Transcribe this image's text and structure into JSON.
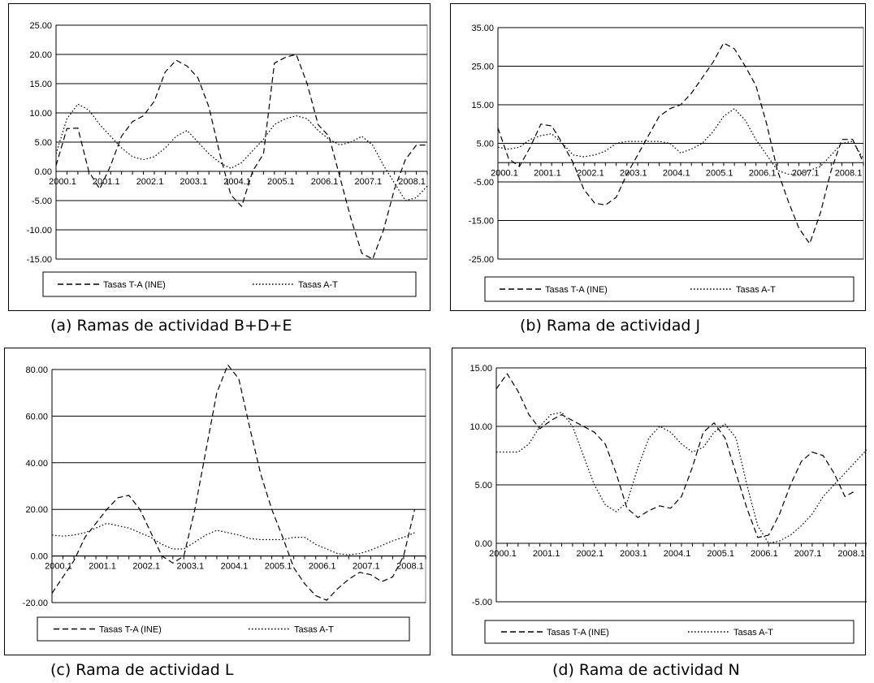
{
  "legend": {
    "dash_label": "Tasas T-A (INE)",
    "dot_label": "Tasas A-T"
  },
  "colors": {
    "line": "#000000",
    "grid": "#000000",
    "background": "#ffffff"
  },
  "chart_data": [
    {
      "type": "line",
      "caption": "(a) Ramas de actividad B+D+E",
      "y_ticks": [
        "25.00",
        "20.00",
        "15.00",
        "10.00",
        "5.00",
        "0.00",
        "-5.00",
        "-10.00",
        "-15.00"
      ],
      "ylim": [
        -15,
        25
      ],
      "x_tick_labels": [
        "2000.1",
        "2001.1",
        "2002.1",
        "2003.1",
        "2004.1",
        "2005.1",
        "2006.1",
        "2007.1",
        "2008.1"
      ],
      "x_axis_at": 0,
      "series": [
        {
          "name": "Tasas T-A (INE)",
          "style": "dash",
          "values": [
            1.0,
            7.3,
            7.4,
            0,
            -3,
            1,
            6,
            8.5,
            9.5,
            12,
            17,
            19,
            18,
            16,
            11,
            3,
            -4,
            -6,
            0,
            3,
            18.5,
            19.5,
            20,
            15,
            8,
            6,
            -1,
            -8,
            -14,
            -15,
            -10,
            -3,
            2,
            4.5,
            4.5
          ]
        },
        {
          "name": "Tasas A-T",
          "style": "dot",
          "values": [
            3,
            9,
            11.5,
            10.5,
            8,
            6,
            4,
            2.5,
            2,
            2.5,
            4,
            6,
            7,
            5,
            3,
            1.5,
            0.5,
            1.5,
            3.5,
            5.5,
            8,
            9,
            9.5,
            9,
            7,
            5.5,
            4.5,
            5,
            6,
            4.5,
            1,
            -2,
            -5,
            -4.5,
            -2.5
          ]
        }
      ]
    },
    {
      "type": "line",
      "caption": "(b) Rama de actividad J",
      "y_ticks": [
        "35.00",
        "25.00",
        "15.00",
        "5.00",
        "-5.00",
        "-15.00",
        "-25.00"
      ],
      "ylim": [
        -25,
        35
      ],
      "x_tick_labels": [
        "2000.1",
        "2001.1",
        "2002.1",
        "2003.1",
        "2004.1",
        "2005.1",
        "2006.1",
        "2007.1",
        "2008.1"
      ],
      "x_axis_at": 0,
      "series": [
        {
          "name": "Tasas T-A (INE)",
          "style": "dash",
          "values": [
            9,
            1,
            -1,
            4,
            10,
            9.5,
            5,
            0,
            -7,
            -10.5,
            -11,
            -9,
            -3,
            2,
            7,
            12,
            14,
            15,
            18,
            22,
            26,
            31,
            29.5,
            25,
            20,
            10,
            -2,
            -10,
            -17,
            -21,
            -13,
            -2,
            6,
            6,
            0
          ]
        },
        {
          "name": "Tasas A-T",
          "style": "dot",
          "values": [
            4,
            3.5,
            4,
            6,
            7,
            7.5,
            5,
            2,
            1.5,
            2,
            3,
            5,
            5.5,
            5.5,
            5.5,
            5.5,
            5,
            2.5,
            3.5,
            5,
            8,
            12,
            14,
            11,
            6,
            2,
            -2,
            -3,
            -3,
            -2,
            -1,
            2,
            5,
            5.5,
            1
          ]
        }
      ]
    },
    {
      "type": "line",
      "caption": "(c) Rama de actividad L",
      "y_ticks": [
        "80.00",
        "60.00",
        "40.00",
        "20.00",
        "0.00",
        "-20.00"
      ],
      "ylim": [
        -20,
        80
      ],
      "x_tick_labels": [
        "2000.1",
        "2001.1",
        "2002.1",
        "2003.1",
        "2004.1",
        "2005.1",
        "2006.1",
        "2007.1",
        "2008.1"
      ],
      "x_axis_at": 0,
      "series": [
        {
          "name": "Tasas T-A (INE)",
          "style": "dash",
          "values": [
            -16,
            -9,
            -2,
            8,
            14,
            20,
            25,
            26,
            20,
            10,
            0,
            -3,
            0,
            20,
            45,
            70,
            82,
            76,
            55,
            35,
            20,
            8,
            -5,
            -12,
            -17,
            -19,
            -14,
            -10,
            -7,
            -8,
            -11,
            -9,
            0,
            20,
            null
          ]
        },
        {
          "name": "Tasas A-T",
          "style": "dot",
          "values": [
            9,
            8.5,
            9,
            10,
            12,
            14,
            13,
            12,
            10,
            8,
            5,
            3,
            3,
            6,
            9,
            11,
            10,
            9,
            7.5,
            7,
            7,
            7,
            8,
            8,
            5,
            3,
            1,
            0.5,
            1,
            2.5,
            4.5,
            6.5,
            8,
            10,
            null
          ]
        }
      ]
    },
    {
      "type": "line",
      "caption": "(d) Rama de actividad N",
      "y_ticks": [
        "15.00",
        "10.00",
        "5.00",
        "0.00",
        "-5.00"
      ],
      "ylim": [
        -5,
        15
      ],
      "x_tick_labels": [
        "2000.1",
        "2001.1",
        "2002.1",
        "2003.1",
        "2004.1",
        "2005.1",
        "2006.1",
        "2007.1",
        "2008.1"
      ],
      "x_axis_at": 0,
      "series": [
        {
          "name": "Tasas T-A (INE)",
          "style": "dash",
          "values": [
            13.2,
            14.5,
            13,
            11,
            9.8,
            10.5,
            11,
            10.5,
            10,
            9.5,
            8.5,
            6,
            3,
            2.2,
            2.8,
            3.2,
            3,
            4,
            6.5,
            9.5,
            10.3,
            9,
            6,
            3,
            0.5,
            0.7,
            2.5,
            5,
            7,
            7.8,
            7.5,
            6,
            4,
            4.5,
            null
          ]
        },
        {
          "name": "Tasas A-T",
          "style": "dot",
          "values": [
            7.8,
            7.8,
            7.8,
            8.5,
            10,
            11,
            11.2,
            10,
            7.5,
            5,
            3.3,
            2.7,
            3.5,
            6.5,
            9,
            10,
            9.5,
            8.5,
            7.8,
            8.2,
            9.5,
            10.2,
            9,
            5,
            1.5,
            0,
            0.2,
            0.7,
            1.5,
            2.5,
            4,
            5,
            6,
            7,
            8
          ]
        }
      ]
    }
  ]
}
